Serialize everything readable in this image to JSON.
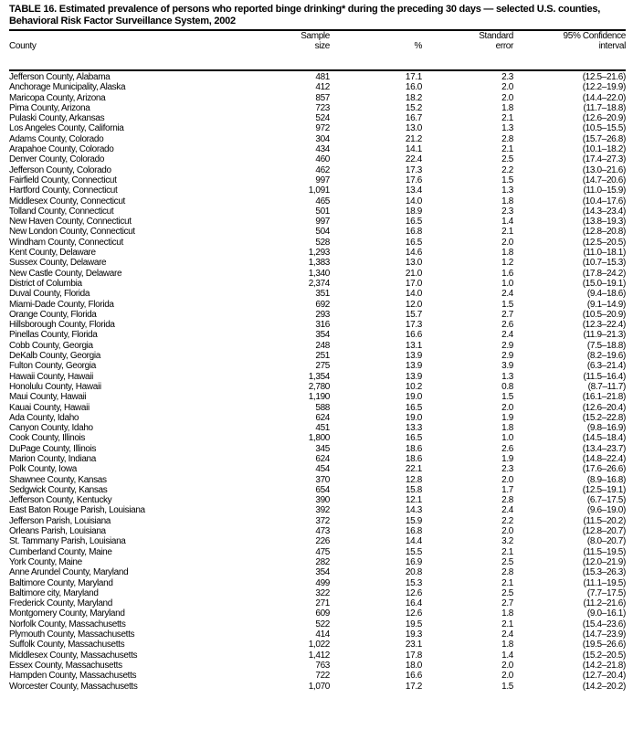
{
  "title_line1": "TABLE 16. Estimated prevalence of persons who reported binge drinking* during the preceding 30 days — selected U.S. counties,",
  "title_line2": "Behavioral Risk Factor Surveillance System, 2002",
  "columns": [
    {
      "line1": "",
      "line2": "County"
    },
    {
      "line1": "Sample",
      "line2": "size"
    },
    {
      "line1": "",
      "line2": "%"
    },
    {
      "line1": "Standard",
      "line2": "error"
    },
    {
      "line1": "95% Confidence",
      "line2": "interval"
    }
  ],
  "rows": [
    [
      "Jefferson County, Alabama",
      "481",
      "17.1",
      "2.3",
      "(12.5–21.6)"
    ],
    [
      "Anchorage Municipality, Alaska",
      "412",
      "16.0",
      "2.0",
      "(12.2–19.9)"
    ],
    [
      "Maricopa County, Arizona",
      "857",
      "18.2",
      "2.0",
      "(14.4–22.0)"
    ],
    [
      "Pima County, Arizona",
      "723",
      "15.2",
      "1.8",
      "(11.7–18.8)"
    ],
    [
      "Pulaski County, Arkansas",
      "524",
      "16.7",
      "2.1",
      "(12.6–20.9)"
    ],
    [
      "Los Angeles County, California",
      "972",
      "13.0",
      "1.3",
      "(10.5–15.5)"
    ],
    [
      "Adams County, Colorado",
      "304",
      "21.2",
      "2.8",
      "(15.7–26.8)"
    ],
    [
      "Arapahoe County, Colorado",
      "434",
      "14.1",
      "2.1",
      "(10.1–18.2)"
    ],
    [
      "Denver County, Colorado",
      "460",
      "22.4",
      "2.5",
      "(17.4–27.3)"
    ],
    [
      "Jefferson County, Colorado",
      "462",
      "17.3",
      "2.2",
      "(13.0–21.6)"
    ],
    [
      "Fairfield County, Connecticut",
      "997",
      "17.6",
      "1.5",
      "(14.7–20.6)"
    ],
    [
      "Hartford County, Connecticut",
      "1,091",
      "13.4",
      "1.3",
      "(11.0–15.9)"
    ],
    [
      "Middlesex County, Connecticut",
      "465",
      "14.0",
      "1.8",
      "(10.4–17.6)"
    ],
    [
      "Tolland County, Connecticut",
      "501",
      "18.9",
      "2.3",
      "(14.3–23.4)"
    ],
    [
      "New Haven County, Connecticut",
      "997",
      "16.5",
      "1.4",
      "(13.8–19.3)"
    ],
    [
      "New London County, Connecticut",
      "504",
      "16.8",
      "2.1",
      "(12.8–20.8)"
    ],
    [
      "Windham County, Connecticut",
      "528",
      "16.5",
      "2.0",
      "(12.5–20.5)"
    ],
    [
      "Kent County, Delaware",
      "1,293",
      "14.6",
      "1.8",
      "(11.0–18.1)"
    ],
    [
      "Sussex County, Delaware",
      "1,383",
      "13.0",
      "1.2",
      "(10.7–15.3)"
    ],
    [
      "New Castle County, Delaware",
      "1,340",
      "21.0",
      "1.6",
      "(17.8–24.2)"
    ],
    [
      "District of Columbia",
      "2,374",
      "17.0",
      "1.0",
      "(15.0–19.1)"
    ],
    [
      "Duval County, Florida",
      "351",
      "14.0",
      "2.4",
      "(9.4–18.6)"
    ],
    [
      "Miami-Dade County, Florida",
      "692",
      "12.0",
      "1.5",
      "(9.1–14.9)"
    ],
    [
      "Orange County, Florida",
      "293",
      "15.7",
      "2.7",
      "(10.5–20.9)"
    ],
    [
      "Hillsborough County, Florida",
      "316",
      "17.3",
      "2.6",
      "(12.3–22.4)"
    ],
    [
      "Pinellas County, Florida",
      "354",
      "16.6",
      "2.4",
      "(11.9–21.3)"
    ],
    [
      "Cobb County, Georgia",
      "248",
      "13.1",
      "2.9",
      "(7.5–18.8)"
    ],
    [
      "DeKalb County, Georgia",
      "251",
      "13.9",
      "2.9",
      "(8.2–19.6)"
    ],
    [
      "Fulton County, Georgia",
      "275",
      "13.9",
      "3.9",
      "(6.3–21.4)"
    ],
    [
      "Hawaii County, Hawaii",
      "1,354",
      "13.9",
      "1.3",
      "(11.5–16.4)"
    ],
    [
      "Honolulu County, Hawaii",
      "2,780",
      "10.2",
      "0.8",
      "(8.7–11.7)"
    ],
    [
      "Maui County, Hawaii",
      "1,190",
      "19.0",
      "1.5",
      "(16.1–21.8)"
    ],
    [
      "Kauai County, Hawaii",
      "588",
      "16.5",
      "2.0",
      "(12.6–20.4)"
    ],
    [
      "Ada County, Idaho",
      "624",
      "19.0",
      "1.9",
      "(15.2–22.8)"
    ],
    [
      "Canyon County, Idaho",
      "451",
      "13.3",
      "1.8",
      "(9.8–16.9)"
    ],
    [
      "Cook County, Illinois",
      "1,800",
      "16.5",
      "1.0",
      "(14.5–18.4)"
    ],
    [
      "DuPage County, Illinois",
      "345",
      "18.6",
      "2.6",
      "(13.4–23.7)"
    ],
    [
      "Marion County, Indiana",
      "624",
      "18.6",
      "1.9",
      "(14.8–22.4)"
    ],
    [
      "Polk County, Iowa",
      "454",
      "22.1",
      "2.3",
      "(17.6–26.6)"
    ],
    [
      "Shawnee County, Kansas",
      "370",
      "12.8",
      "2.0",
      "(8.9–16.8)"
    ],
    [
      "Sedgwick County, Kansas",
      "654",
      "15.8",
      "1.7",
      "(12.5–19.1)"
    ],
    [
      "Jefferson County, Kentucky",
      "390",
      "12.1",
      "2.8",
      "(6.7–17.5)"
    ],
    [
      "East Baton Rouge Parish, Louisiana",
      "392",
      "14.3",
      "2.4",
      "(9.6–19.0)"
    ],
    [
      "Jefferson Parish, Louisiana",
      "372",
      "15.9",
      "2.2",
      "(11.5–20.2)"
    ],
    [
      "Orleans Parish, Louisiana",
      "473",
      "16.8",
      "2.0",
      "(12.8–20.7)"
    ],
    [
      "St. Tammany Parish, Louisiana",
      "226",
      "14.4",
      "3.2",
      "(8.0–20.7)"
    ],
    [
      "Cumberland County, Maine",
      "475",
      "15.5",
      "2.1",
      "(11.5–19.5)"
    ],
    [
      "York County, Maine",
      "282",
      "16.9",
      "2.5",
      "(12.0–21.9)"
    ],
    [
      "Anne Arundel County, Maryland",
      "354",
      "20.8",
      "2.8",
      "(15.3–26.3)"
    ],
    [
      "Baltimore County, Maryland",
      "499",
      "15.3",
      "2.1",
      "(11.1–19.5)"
    ],
    [
      "Baltimore city, Maryland",
      "322",
      "12.6",
      "2.5",
      "(7.7–17.5)"
    ],
    [
      "Frederick County, Maryland",
      "271",
      "16.4",
      "2.7",
      "(11.2–21.6)"
    ],
    [
      "Montgomery County, Maryland",
      "609",
      "12.6",
      "1.8",
      "(9.0–16.1)"
    ],
    [
      "Norfolk County, Massachusetts",
      "522",
      "19.5",
      "2.1",
      "(15.4–23.6)"
    ],
    [
      "Plymouth County, Massachusetts",
      "414",
      "19.3",
      "2.4",
      "(14.7–23.9)"
    ],
    [
      "Suffolk County, Massachusetts",
      "1,022",
      "23.1",
      "1.8",
      "(19.5–26.6)"
    ],
    [
      "Middlesex County, Massachusetts",
      "1,412",
      "17.8",
      "1.4",
      "(15.2–20.5)"
    ],
    [
      "Essex County, Massachusetts",
      "763",
      "18.0",
      "2.0",
      "(14.2–21.8)"
    ],
    [
      "Hampden County, Massachusetts",
      "722",
      "16.6",
      "2.0",
      "(12.7–20.4)"
    ],
    [
      "Worcester County, Massachusetts",
      "1,070",
      "17.2",
      "1.5",
      "(14.2–20.2)"
    ]
  ]
}
